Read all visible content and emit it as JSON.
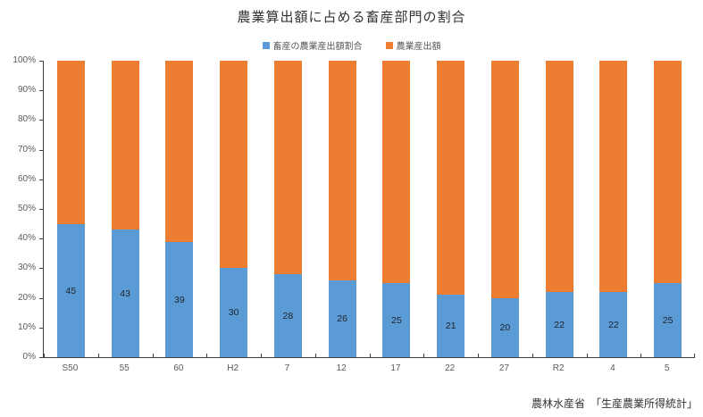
{
  "title": "農業算出額に占める畜産部門の割合",
  "source": "農林水産省　「生産農業所得統計」",
  "colors": {
    "livestock_blue": "#5B9BD5",
    "agriculture_orange": "#ED7D31",
    "axis": "#404040",
    "tick_label": "#595959",
    "data_label": "#21252e"
  },
  "chart_data": {
    "type": "bar",
    "subtype": "100%-stacked-column",
    "title": "農業算出額に占める畜産部門の割合",
    "categories": [
      "S50",
      "55",
      "60",
      "H2",
      "7",
      "12",
      "17",
      "22",
      "27",
      "R2",
      "4",
      "5"
    ],
    "series": [
      {
        "name": "畜産の農業産出額割合",
        "color": "#5B9BD5",
        "values": [
          45,
          43,
          39,
          30,
          28,
          26,
          25,
          21,
          20,
          22,
          22,
          25
        ],
        "data_labels_shown": true
      },
      {
        "name": "農業産出額",
        "color": "#ED7D31",
        "values": [
          55,
          57,
          61,
          70,
          72,
          74,
          75,
          79,
          80,
          78,
          78,
          75
        ],
        "data_labels_shown": false
      }
    ],
    "xlabel": "",
    "ylabel": "",
    "ylim": [
      0,
      100
    ],
    "ytick_step": 10,
    "ytick_labels": [
      "0%",
      "10%",
      "20%",
      "30%",
      "40%",
      "50%",
      "60%",
      "70%",
      "80%",
      "90%",
      "100%"
    ],
    "grid": false,
    "legend_position": "top-center"
  }
}
